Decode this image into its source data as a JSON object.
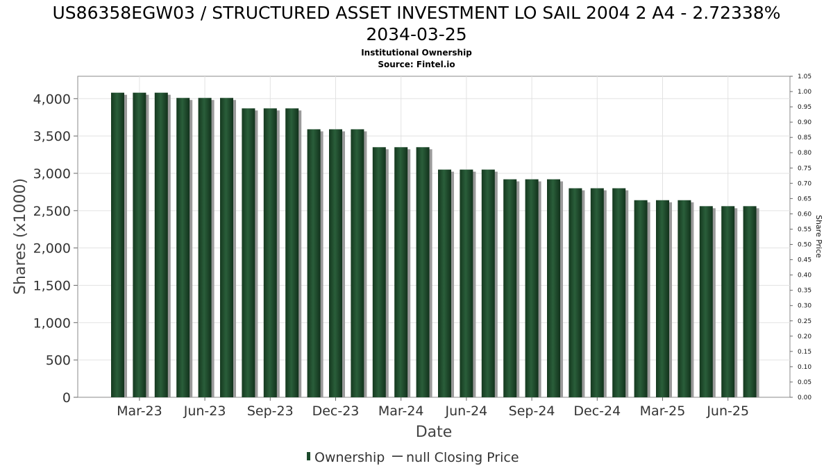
{
  "chart_data": {
    "type": "bar",
    "title": "US86358EGW03 / STRUCTURED ASSET INVESTMENT LO SAIL 2004 2 A4 - 2.72338%",
    "title_line2": "2034-03-25",
    "subtitle": "Institutional Ownership",
    "source": "Source: Fintel.io",
    "xlabel": "Date",
    "ylabel": "Shares (x1000)",
    "ylabel_right": "Share Price",
    "ylim": [
      0,
      4300
    ],
    "ylim_right": [
      0,
      1.05
    ],
    "y_ticks": [
      "0",
      "500",
      "1,000",
      "1,500",
      "2,000",
      "2,500",
      "3,000",
      "3,500",
      "4,000"
    ],
    "y_tick_values": [
      0,
      500,
      1000,
      1500,
      2000,
      2500,
      3000,
      3500,
      4000
    ],
    "y_right_ticks": [
      "0.00",
      "0.05",
      "0.10",
      "0.15",
      "0.20",
      "0.25",
      "0.30",
      "0.35",
      "0.40",
      "0.45",
      "0.50",
      "0.55",
      "0.60",
      "0.65",
      "0.70",
      "0.75",
      "0.80",
      "0.85",
      "0.90",
      "0.95",
      "1.00",
      "1.05"
    ],
    "x_ticks": [
      "Mar-23",
      "Jun-23",
      "Sep-23",
      "Dec-23",
      "Mar-24",
      "Jun-24",
      "Sep-24",
      "Dec-24",
      "Mar-25",
      "Jun-25"
    ],
    "grid": true,
    "legend_position": "bottom",
    "legend": [
      "Ownership",
      "null Closing Price"
    ],
    "bar_color": "#1c4a2c",
    "series": [
      {
        "name": "Ownership",
        "values": [
          4080,
          4080,
          4080,
          4010,
          4010,
          4010,
          3870,
          3870,
          3870,
          3590,
          3590,
          3590,
          3350,
          3350,
          3350,
          3050,
          3050,
          3050,
          2920,
          2920,
          2920,
          2800,
          2800,
          2800,
          2640,
          2640,
          2640,
          2560,
          2560,
          2560
        ]
      }
    ]
  }
}
